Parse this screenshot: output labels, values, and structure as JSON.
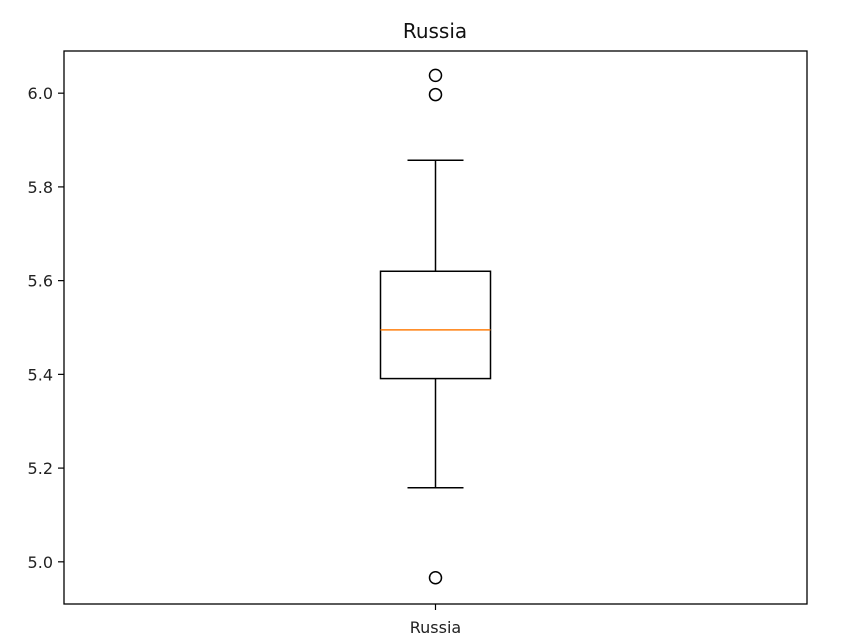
{
  "chart_data": {
    "type": "boxplot",
    "title": "Russia",
    "xlabel": "",
    "ylabel": "",
    "categories": [
      "Russia"
    ],
    "ylim": [
      4.91,
      6.09
    ],
    "yticks": [
      5.0,
      5.2,
      5.4,
      5.6,
      5.8,
      6.0
    ],
    "ytick_labels": [
      "5.0",
      "5.2",
      "5.4",
      "5.6",
      "5.8",
      "6.0"
    ],
    "grid": false,
    "boxes": [
      {
        "name": "Russia",
        "whisker_low": 5.158,
        "q1": 5.391,
        "median": 5.495,
        "q3": 5.62,
        "whisker_high": 5.857,
        "outliers": [
          4.966,
          5.997,
          6.038
        ]
      }
    ],
    "colors": {
      "box": "#000000",
      "median": "#ff7f0e",
      "background": "#ffffff"
    }
  }
}
